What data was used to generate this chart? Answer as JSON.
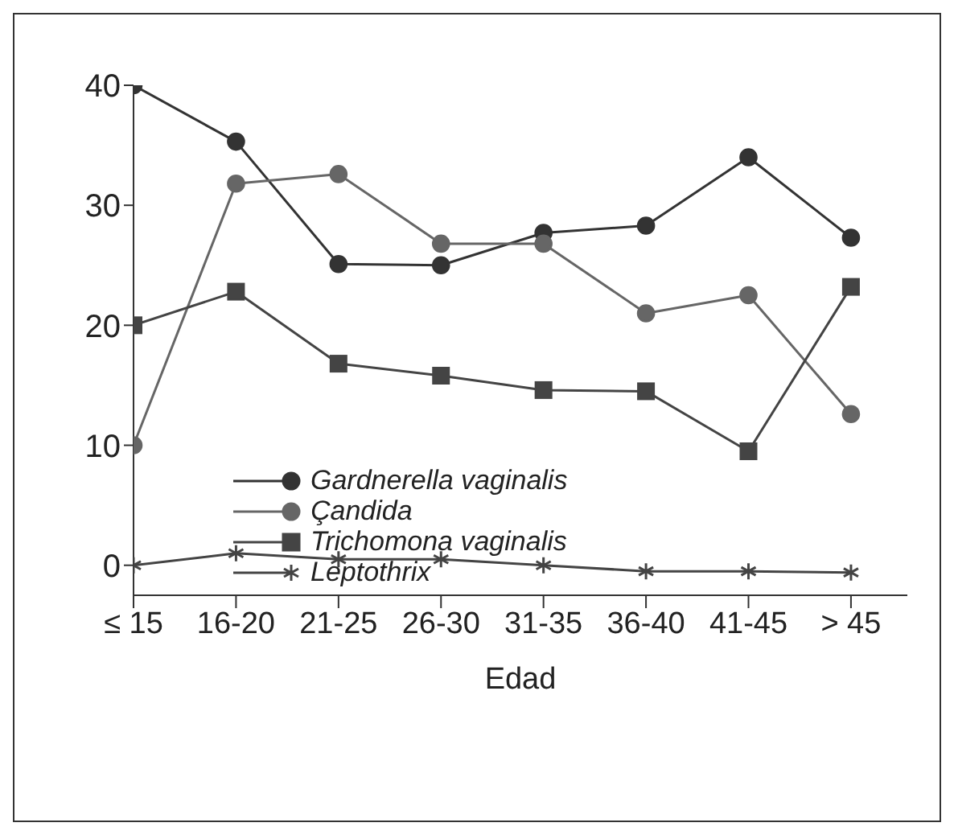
{
  "chart_data": {
    "type": "line",
    "xlabel": "Edad",
    "categories": [
      "≤ 15",
      "16-20",
      "21-25",
      "26-30",
      "31-35",
      "36-40",
      "41-45",
      "> 45"
    ],
    "ylim": [
      -2.5,
      40
    ],
    "yticks": [
      0,
      10,
      20,
      30,
      40
    ],
    "grid": false,
    "legend": "bottom",
    "series": [
      {
        "name": "Gardnerella vaginalis",
        "color": "#333333",
        "marker": "circle",
        "values": [
          40,
          35.3,
          25.1,
          25,
          27.7,
          28.3,
          34,
          27.3
        ]
      },
      {
        "name": "Çandida",
        "color": "#666666",
        "marker": "circle",
        "values": [
          10,
          31.8,
          32.6,
          26.8,
          26.8,
          21,
          22.5,
          12.6
        ]
      },
      {
        "name": "Trichomona vaginalis",
        "color": "#444444",
        "marker": "square",
        "values": [
          20,
          22.8,
          16.8,
          15.8,
          14.6,
          14.5,
          9.5,
          23.2
        ]
      },
      {
        "name": "Leptothrix",
        "color": "#444444",
        "marker": "cross",
        "values": [
          0,
          1,
          0.5,
          0.5,
          0,
          -0.5,
          -0.5,
          -0.6
        ]
      }
    ]
  }
}
